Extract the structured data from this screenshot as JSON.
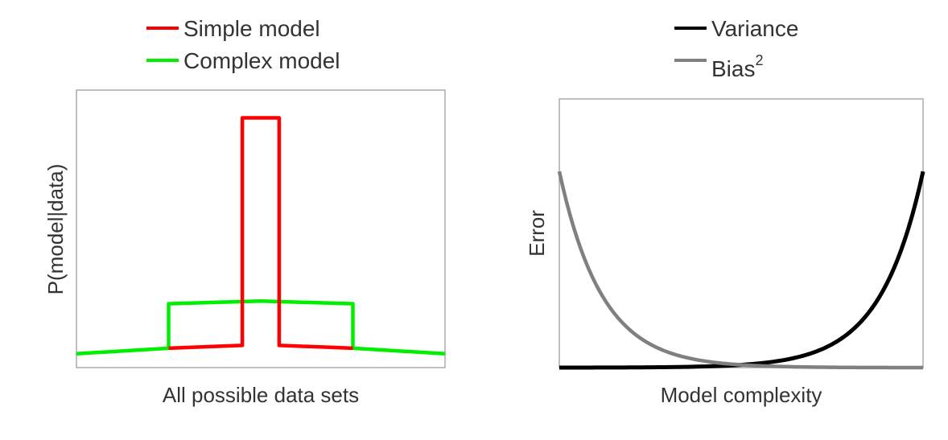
{
  "chart_data": [
    {
      "type": "line",
      "xlabel": "All possible data sets",
      "ylabel": "P(model|data)",
      "xlim": [
        0,
        1
      ],
      "ylim": [
        0,
        1
      ],
      "grid": false,
      "legend_placement": "top",
      "series": [
        {
          "name": "Simple model",
          "color": "#ff0000",
          "x": [
            0.25,
            0.45,
            0.45,
            0.55,
            0.55,
            0.75
          ],
          "y": [
            0.07,
            0.08,
            0.9,
            0.9,
            0.08,
            0.07
          ]
        },
        {
          "name": "Complex model",
          "color": "#00ee00",
          "x": [
            0,
            0.25,
            0.25,
            0.5,
            0.75,
            0.75,
            1
          ],
          "y": [
            0.05,
            0.07,
            0.23,
            0.24,
            0.23,
            0.07,
            0.05
          ]
        }
      ]
    },
    {
      "type": "line",
      "xlabel": "Model complexity",
      "ylabel": "Error",
      "xlim": [
        0,
        1
      ],
      "ylim": [
        0,
        1
      ],
      "grid": false,
      "legend_placement": "top",
      "series": [
        {
          "name": "Variance",
          "color": "#000000",
          "shape": "increasing exponential"
        },
        {
          "name": "Bias",
          "name_superscript": "2",
          "color": "#808080",
          "shape": "decreasing exponential"
        }
      ]
    }
  ]
}
